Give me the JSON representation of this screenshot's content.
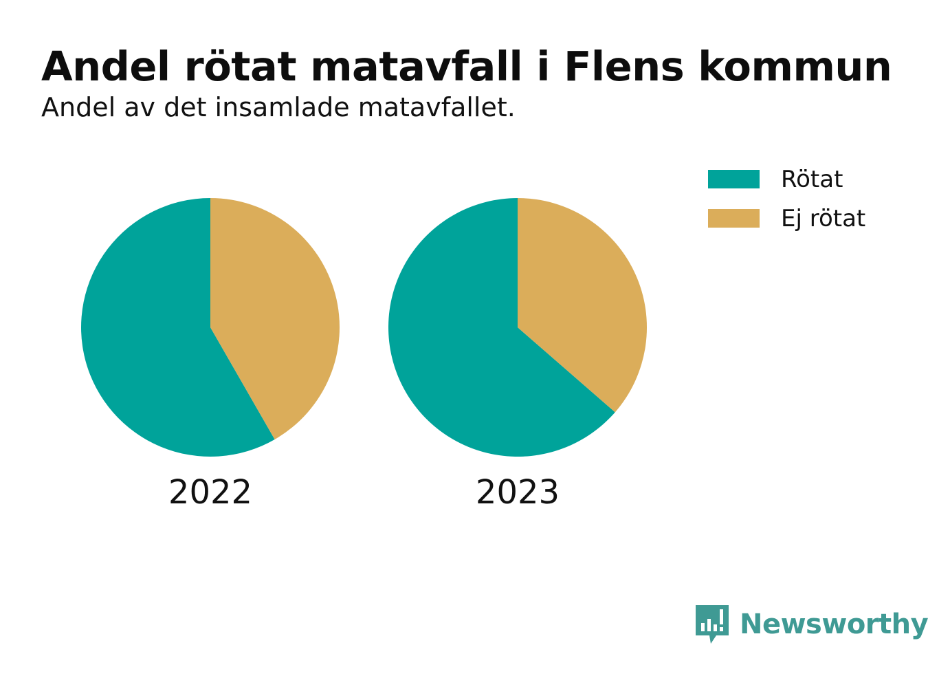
{
  "header": {
    "title": "Andel rötat matavfall i Flens kommun",
    "subtitle": "Andel av det insamlade matavfallet."
  },
  "legend": {
    "items": [
      {
        "label": "Rötat",
        "color": "#00a39a"
      },
      {
        "label": "Ej rötat",
        "color": "#dbad5a"
      }
    ]
  },
  "chart_data": {
    "type": "pie",
    "title": "Andel rötat matavfall i Flens kommun",
    "subtitle": "Andel av det insamlade matavfallet.",
    "legend_position": "top-right",
    "slice_names": [
      "Rötat",
      "Ej rötat"
    ],
    "colors": [
      "#00a39a",
      "#dbad5a"
    ],
    "pies": [
      {
        "label": "2022",
        "values": [
          58.3,
          41.7
        ]
      },
      {
        "label": "2023",
        "values": [
          63.6,
          36.4
        ]
      }
    ]
  },
  "brand": {
    "name": "Newsworthy",
    "logo_icon": "newsworthy-logo-icon",
    "color": "#3f9a94"
  }
}
